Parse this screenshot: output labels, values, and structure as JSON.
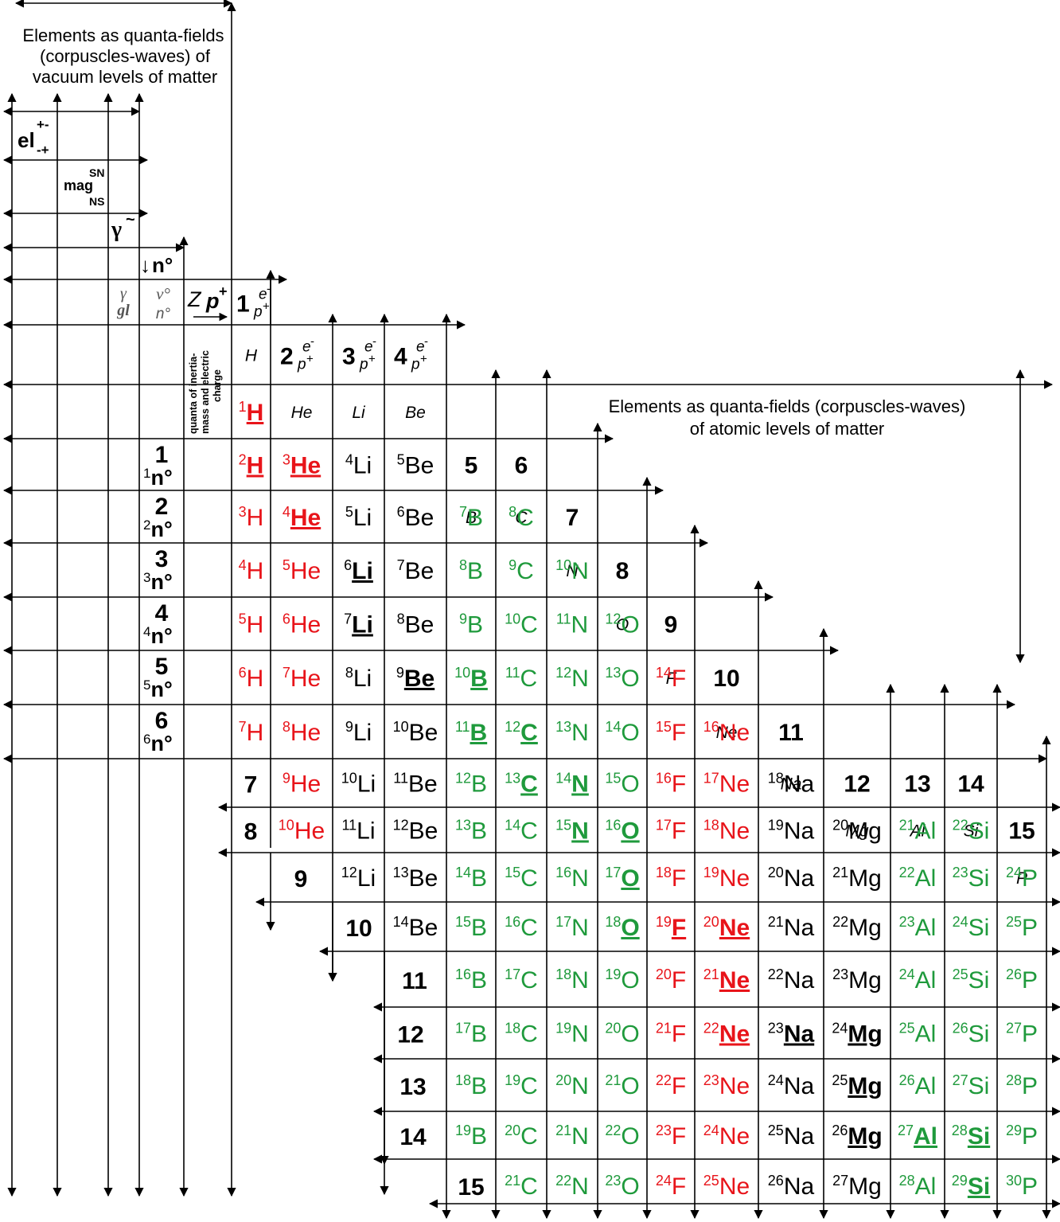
{
  "colors": {
    "line": "#000000",
    "hydrogen_helium": "#e8141a",
    "light_elements": "#1f9a3c",
    "other": "#000000"
  },
  "captions": {
    "vacuum": [
      "Elements as quanta-fields",
      "(corpuscles-waves) of",
      "vacuum levels of matter"
    ],
    "atomic": [
      "Elements as quanta-fields (corpuscles-waves)",
      "of atomic levels of matter"
    ],
    "quanta_inertia": [
      "quanta of inertia-",
      "mass and electric",
      "charge"
    ]
  },
  "vacuum_symbols": {
    "el": "el",
    "el_sup": "+-",
    "el_sub": "-+",
    "mag": "mag",
    "mag_sup": "SN",
    "mag_sub": "NS",
    "gamma": "γ",
    "gamma_sup": "~",
    "neutron": "n°",
    "neutron_arrow": "↓",
    "gamma_gl_top": "γ",
    "gamma_gl_bottom": "gl",
    "nu": "ν°",
    "n_deg": "n°",
    "z": "Z",
    "p_plus": "p",
    "p_plus_sup": "+"
  },
  "neutron_rows": [
    {
      "n": "1",
      "label": "1n°"
    },
    {
      "n": "2",
      "label": "2n°"
    },
    {
      "n": "3",
      "label": "3n°"
    },
    {
      "n": "4",
      "label": "4n°"
    },
    {
      "n": "5",
      "label": "5n°"
    },
    {
      "n": "6",
      "label": "6n°"
    }
  ],
  "column_headers": [
    {
      "z": "1",
      "symbol": "H"
    },
    {
      "z": "2",
      "symbol": "He"
    },
    {
      "z": "3",
      "symbol": "Li"
    },
    {
      "z": "4",
      "symbol": "Be"
    },
    {
      "z": "5",
      "symbol": "B"
    },
    {
      "z": "6",
      "symbol": "C"
    },
    {
      "z": "7",
      "symbol": "N"
    },
    {
      "z": "8",
      "symbol": "O"
    },
    {
      "z": "9",
      "symbol": "F"
    },
    {
      "z": "10",
      "symbol": "Ne"
    },
    {
      "z": "11",
      "symbol": "Na"
    },
    {
      "z": "12",
      "symbol": "Mg"
    },
    {
      "z": "13",
      "symbol": "Al"
    },
    {
      "z": "14",
      "symbol": "Si"
    },
    {
      "z": "15",
      "symbol": "P"
    }
  ],
  "header_ep": {
    "e": "e",
    "e_sup": "-",
    "p": "p",
    "p_sup": "+"
  },
  "lower_row_numbers": [
    "7",
    "8",
    "9",
    "10",
    "11",
    "12",
    "13",
    "14",
    "15"
  ],
  "isotopes": [
    {
      "z": 1,
      "mass": 1,
      "symbol": "H",
      "stable": true
    },
    {
      "z": 1,
      "mass": 2,
      "symbol": "H",
      "stable": true
    },
    {
      "z": 1,
      "mass": 3,
      "symbol": "H",
      "stable": false
    },
    {
      "z": 1,
      "mass": 4,
      "symbol": "H",
      "stable": false
    },
    {
      "z": 1,
      "mass": 5,
      "symbol": "H",
      "stable": false
    },
    {
      "z": 1,
      "mass": 6,
      "symbol": "H",
      "stable": false
    },
    {
      "z": 1,
      "mass": 7,
      "symbol": "H",
      "stable": false
    },
    {
      "z": 2,
      "mass": 3,
      "symbol": "He",
      "stable": true
    },
    {
      "z": 2,
      "mass": 4,
      "symbol": "He",
      "stable": true
    },
    {
      "z": 2,
      "mass": 5,
      "symbol": "He",
      "stable": false
    },
    {
      "z": 2,
      "mass": 6,
      "symbol": "He",
      "stable": false
    },
    {
      "z": 2,
      "mass": 7,
      "symbol": "He",
      "stable": false
    },
    {
      "z": 2,
      "mass": 8,
      "symbol": "He",
      "stable": false
    },
    {
      "z": 2,
      "mass": 9,
      "symbol": "He",
      "stable": false
    },
    {
      "z": 2,
      "mass": 10,
      "symbol": "He",
      "stable": false
    },
    {
      "z": 3,
      "mass": 4,
      "symbol": "Li",
      "stable": false
    },
    {
      "z": 3,
      "mass": 5,
      "symbol": "Li",
      "stable": false
    },
    {
      "z": 3,
      "mass": 6,
      "symbol": "Li",
      "stable": true
    },
    {
      "z": 3,
      "mass": 7,
      "symbol": "Li",
      "stable": true
    },
    {
      "z": 3,
      "mass": 8,
      "symbol": "Li",
      "stable": false
    },
    {
      "z": 3,
      "mass": 9,
      "symbol": "Li",
      "stable": false
    },
    {
      "z": 3,
      "mass": 10,
      "symbol": "Li",
      "stable": false
    },
    {
      "z": 3,
      "mass": 11,
      "symbol": "Li",
      "stable": false
    },
    {
      "z": 3,
      "mass": 12,
      "symbol": "Li",
      "stable": false
    },
    {
      "z": 4,
      "mass": 5,
      "symbol": "Be",
      "stable": false
    },
    {
      "z": 4,
      "mass": 6,
      "symbol": "Be",
      "stable": false
    },
    {
      "z": 4,
      "mass": 7,
      "symbol": "Be",
      "stable": false
    },
    {
      "z": 4,
      "mass": 8,
      "symbol": "Be",
      "stable": false
    },
    {
      "z": 4,
      "mass": 9,
      "symbol": "Be",
      "stable": true
    },
    {
      "z": 4,
      "mass": 10,
      "symbol": "Be",
      "stable": false
    },
    {
      "z": 4,
      "mass": 11,
      "symbol": "Be",
      "stable": false
    },
    {
      "z": 4,
      "mass": 12,
      "symbol": "Be",
      "stable": false
    },
    {
      "z": 4,
      "mass": 13,
      "symbol": "Be",
      "stable": false
    },
    {
      "z": 4,
      "mass": 14,
      "symbol": "Be",
      "stable": false
    },
    {
      "z": 5,
      "mass": 7,
      "symbol": "B",
      "stable": false
    },
    {
      "z": 5,
      "mass": 8,
      "symbol": "B",
      "stable": false
    },
    {
      "z": 5,
      "mass": 9,
      "symbol": "B",
      "stable": false
    },
    {
      "z": 5,
      "mass": 10,
      "symbol": "B",
      "stable": true
    },
    {
      "z": 5,
      "mass": 11,
      "symbol": "B",
      "stable": true
    },
    {
      "z": 5,
      "mass": 12,
      "symbol": "B",
      "stable": false
    },
    {
      "z": 5,
      "mass": 13,
      "symbol": "B",
      "stable": false
    },
    {
      "z": 5,
      "mass": 14,
      "symbol": "B",
      "stable": false
    },
    {
      "z": 5,
      "mass": 15,
      "symbol": "B",
      "stable": false
    },
    {
      "z": 5,
      "mass": 16,
      "symbol": "B",
      "stable": false
    },
    {
      "z": 5,
      "mass": 17,
      "symbol": "B",
      "stable": false
    },
    {
      "z": 5,
      "mass": 18,
      "symbol": "B",
      "stable": false
    },
    {
      "z": 5,
      "mass": 19,
      "symbol": "B",
      "stable": false
    },
    {
      "z": 6,
      "mass": 8,
      "symbol": "C",
      "stable": false
    },
    {
      "z": 6,
      "mass": 9,
      "symbol": "C",
      "stable": false
    },
    {
      "z": 6,
      "mass": 10,
      "symbol": "C",
      "stable": false
    },
    {
      "z": 6,
      "mass": 11,
      "symbol": "C",
      "stable": false
    },
    {
      "z": 6,
      "mass": 12,
      "symbol": "C",
      "stable": true
    },
    {
      "z": 6,
      "mass": 13,
      "symbol": "C",
      "stable": true
    },
    {
      "z": 6,
      "mass": 14,
      "symbol": "C",
      "stable": false
    },
    {
      "z": 6,
      "mass": 15,
      "symbol": "C",
      "stable": false
    },
    {
      "z": 6,
      "mass": 16,
      "symbol": "C",
      "stable": false
    },
    {
      "z": 6,
      "mass": 17,
      "symbol": "C",
      "stable": false
    },
    {
      "z": 6,
      "mass": 18,
      "symbol": "C",
      "stable": false
    },
    {
      "z": 6,
      "mass": 19,
      "symbol": "C",
      "stable": false
    },
    {
      "z": 6,
      "mass": 20,
      "symbol": "C",
      "stable": false
    },
    {
      "z": 6,
      "mass": 21,
      "symbol": "C",
      "stable": false
    },
    {
      "z": 7,
      "mass": 10,
      "symbol": "N",
      "stable": false
    },
    {
      "z": 7,
      "mass": 11,
      "symbol": "N",
      "stable": false
    },
    {
      "z": 7,
      "mass": 12,
      "symbol": "N",
      "stable": false
    },
    {
      "z": 7,
      "mass": 13,
      "symbol": "N",
      "stable": false
    },
    {
      "z": 7,
      "mass": 14,
      "symbol": "N",
      "stable": true
    },
    {
      "z": 7,
      "mass": 15,
      "symbol": "N",
      "stable": true
    },
    {
      "z": 7,
      "mass": 16,
      "symbol": "N",
      "stable": false
    },
    {
      "z": 7,
      "mass": 17,
      "symbol": "N",
      "stable": false
    },
    {
      "z": 7,
      "mass": 18,
      "symbol": "N",
      "stable": false
    },
    {
      "z": 7,
      "mass": 19,
      "symbol": "N",
      "stable": false
    },
    {
      "z": 7,
      "mass": 20,
      "symbol": "N",
      "stable": false
    },
    {
      "z": 7,
      "mass": 21,
      "symbol": "N",
      "stable": false
    },
    {
      "z": 7,
      "mass": 22,
      "symbol": "N",
      "stable": false
    },
    {
      "z": 8,
      "mass": 12,
      "symbol": "O",
      "stable": false
    },
    {
      "z": 8,
      "mass": 13,
      "symbol": "O",
      "stable": false
    },
    {
      "z": 8,
      "mass": 14,
      "symbol": "O",
      "stable": false
    },
    {
      "z": 8,
      "mass": 15,
      "symbol": "O",
      "stable": false
    },
    {
      "z": 8,
      "mass": 16,
      "symbol": "O",
      "stable": true
    },
    {
      "z": 8,
      "mass": 17,
      "symbol": "O",
      "stable": true
    },
    {
      "z": 8,
      "mass": 18,
      "symbol": "O",
      "stable": true
    },
    {
      "z": 8,
      "mass": 19,
      "symbol": "O",
      "stable": false
    },
    {
      "z": 8,
      "mass": 20,
      "symbol": "O",
      "stable": false
    },
    {
      "z": 8,
      "mass": 21,
      "symbol": "O",
      "stable": false
    },
    {
      "z": 8,
      "mass": 22,
      "symbol": "O",
      "stable": false
    },
    {
      "z": 8,
      "mass": 23,
      "symbol": "O",
      "stable": false
    },
    {
      "z": 9,
      "mass": 14,
      "symbol": "F",
      "stable": false
    },
    {
      "z": 9,
      "mass": 15,
      "symbol": "F",
      "stable": false
    },
    {
      "z": 9,
      "mass": 16,
      "symbol": "F",
      "stable": false
    },
    {
      "z": 9,
      "mass": 17,
      "symbol": "F",
      "stable": false
    },
    {
      "z": 9,
      "mass": 18,
      "symbol": "F",
      "stable": false
    },
    {
      "z": 9,
      "mass": 19,
      "symbol": "F",
      "stable": true
    },
    {
      "z": 9,
      "mass": 20,
      "symbol": "F",
      "stable": false
    },
    {
      "z": 9,
      "mass": 21,
      "symbol": "F",
      "stable": false
    },
    {
      "z": 9,
      "mass": 22,
      "symbol": "F",
      "stable": false
    },
    {
      "z": 9,
      "mass": 23,
      "symbol": "F",
      "stable": false
    },
    {
      "z": 9,
      "mass": 24,
      "symbol": "F",
      "stable": false
    },
    {
      "z": 10,
      "mass": 16,
      "symbol": "Ne",
      "stable": false
    },
    {
      "z": 10,
      "mass": 17,
      "symbol": "Ne",
      "stable": false
    },
    {
      "z": 10,
      "mass": 18,
      "symbol": "Ne",
      "stable": false
    },
    {
      "z": 10,
      "mass": 19,
      "symbol": "Ne",
      "stable": false
    },
    {
      "z": 10,
      "mass": 20,
      "symbol": "Ne",
      "stable": true
    },
    {
      "z": 10,
      "mass": 21,
      "symbol": "Ne",
      "stable": true
    },
    {
      "z": 10,
      "mass": 22,
      "symbol": "Ne",
      "stable": true
    },
    {
      "z": 10,
      "mass": 23,
      "symbol": "Ne",
      "stable": false
    },
    {
      "z": 10,
      "mass": 24,
      "symbol": "Ne",
      "stable": false
    },
    {
      "z": 10,
      "mass": 25,
      "symbol": "Ne",
      "stable": false
    },
    {
      "z": 11,
      "mass": 18,
      "symbol": "Na",
      "stable": false
    },
    {
      "z": 11,
      "mass": 19,
      "symbol": "Na",
      "stable": false
    },
    {
      "z": 11,
      "mass": 20,
      "symbol": "Na",
      "stable": false
    },
    {
      "z": 11,
      "mass": 21,
      "symbol": "Na",
      "stable": false
    },
    {
      "z": 11,
      "mass": 22,
      "symbol": "Na",
      "stable": false
    },
    {
      "z": 11,
      "mass": 23,
      "symbol": "Na",
      "stable": true
    },
    {
      "z": 11,
      "mass": 24,
      "symbol": "Na",
      "stable": false
    },
    {
      "z": 11,
      "mass": 25,
      "symbol": "Na",
      "stable": false
    },
    {
      "z": 11,
      "mass": 26,
      "symbol": "Na",
      "stable": false
    },
    {
      "z": 12,
      "mass": 20,
      "symbol": "Mg",
      "stable": false
    },
    {
      "z": 12,
      "mass": 21,
      "symbol": "Mg",
      "stable": false
    },
    {
      "z": 12,
      "mass": 22,
      "symbol": "Mg",
      "stable": false
    },
    {
      "z": 12,
      "mass": 23,
      "symbol": "Mg",
      "stable": false
    },
    {
      "z": 12,
      "mass": 24,
      "symbol": "Mg",
      "stable": true
    },
    {
      "z": 12,
      "mass": 25,
      "symbol": "Mg",
      "stable": true
    },
    {
      "z": 12,
      "mass": 26,
      "symbol": "Mg",
      "stable": true
    },
    {
      "z": 12,
      "mass": 27,
      "symbol": "Mg",
      "stable": false
    },
    {
      "z": 13,
      "mass": 21,
      "symbol": "Al",
      "stable": false
    },
    {
      "z": 13,
      "mass": 22,
      "symbol": "Al",
      "stable": false
    },
    {
      "z": 13,
      "mass": 23,
      "symbol": "Al",
      "stable": false
    },
    {
      "z": 13,
      "mass": 24,
      "symbol": "Al",
      "stable": false
    },
    {
      "z": 13,
      "mass": 25,
      "symbol": "Al",
      "stable": false
    },
    {
      "z": 13,
      "mass": 26,
      "symbol": "Al",
      "stable": false
    },
    {
      "z": 13,
      "mass": 27,
      "symbol": "Al",
      "stable": true
    },
    {
      "z": 13,
      "mass": 28,
      "symbol": "Al",
      "stable": false
    },
    {
      "z": 14,
      "mass": 22,
      "symbol": "Si",
      "stable": false
    },
    {
      "z": 14,
      "mass": 23,
      "symbol": "Si",
      "stable": false
    },
    {
      "z": 14,
      "mass": 24,
      "symbol": "Si",
      "stable": false
    },
    {
      "z": 14,
      "mass": 25,
      "symbol": "Si",
      "stable": false
    },
    {
      "z": 14,
      "mass": 26,
      "symbol": "Si",
      "stable": false
    },
    {
      "z": 14,
      "mass": 27,
      "symbol": "Si",
      "stable": false
    },
    {
      "z": 14,
      "mass": 28,
      "symbol": "Si",
      "stable": true
    },
    {
      "z": 14,
      "mass": 29,
      "symbol": "Si",
      "stable": true
    },
    {
      "z": 15,
      "mass": 24,
      "symbol": "P",
      "stable": false
    },
    {
      "z": 15,
      "mass": 25,
      "symbol": "P",
      "stable": false
    },
    {
      "z": 15,
      "mass": 26,
      "symbol": "P",
      "stable": false
    },
    {
      "z": 15,
      "mass": 27,
      "symbol": "P",
      "stable": false
    },
    {
      "z": 15,
      "mass": 28,
      "symbol": "P",
      "stable": false
    },
    {
      "z": 15,
      "mass": 29,
      "symbol": "P",
      "stable": false
    },
    {
      "z": 15,
      "mass": 30,
      "symbol": "P",
      "stable": false
    }
  ]
}
